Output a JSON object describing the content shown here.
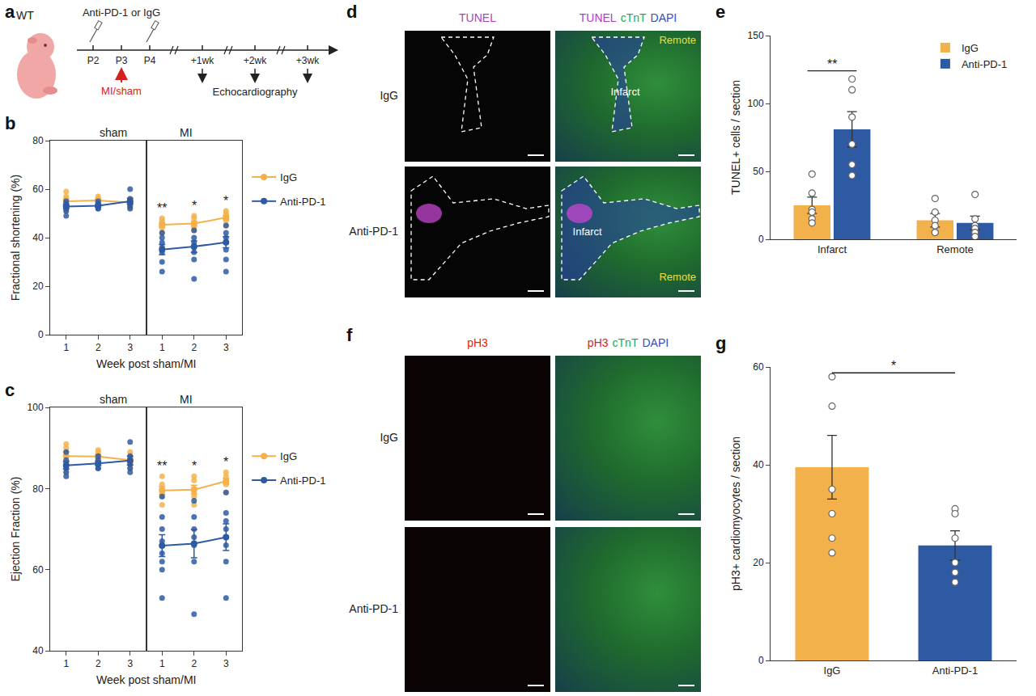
{
  "chart_data": [
    {
      "type": "line",
      "panel": "b",
      "y_label": "Fractional shortening (%)",
      "x_label": "Week post sham/MI",
      "xlim": [
        0.5,
        3.5
      ],
      "xticks": [
        1,
        2,
        3
      ],
      "ylim": [
        0,
        80
      ],
      "yticks": [
        0,
        20,
        40,
        60,
        80
      ],
      "legend": "right",
      "facets": [
        {
          "title": "sham",
          "x": [
            1,
            2,
            3
          ],
          "series": [
            {
              "name": "IgG",
              "color": "#f3b14b",
              "values": [
                55,
                55.3,
                54.5
              ],
              "errors": [
                1.0,
                0.6,
                0.6
              ],
              "points": [
                [
                  59,
                  57,
                  56,
                  55,
                  53,
                  51
                ],
                [
                  57,
                  56,
                  56,
                  55,
                  54,
                  53
                ],
                [
                  56,
                  55,
                  55,
                  54,
                  53,
                  52
                ]
              ]
            },
            {
              "name": "Anti-PD-1",
              "color": "#2e5aa3",
              "values": [
                52.8,
                53.2,
                55
              ],
              "errors": [
                0.8,
                0.5,
                1.2
              ],
              "points": [
                [
                  55,
                  54,
                  53,
                  52,
                  51,
                  49
                ],
                [
                  55,
                  54,
                  53,
                  53,
                  52,
                  52
                ],
                [
                  60,
                  56,
                  55,
                  54,
                  53,
                  52
                ]
              ]
            }
          ],
          "annotations": []
        },
        {
          "title": "MI",
          "x": [
            1,
            2,
            3
          ],
          "series": [
            {
              "name": "IgG",
              "color": "#f3b14b",
              "values": [
                45.3,
                45.8,
                48.3
              ],
              "errors": [
                0.9,
                1.0,
                0.9
              ],
              "points": [
                [
                  48,
                  47,
                  46,
                  45,
                  44,
                  42
                ],
                [
                  49,
                  48,
                  46,
                  45,
                  44,
                  43
                ],
                [
                  51,
                  50,
                  49,
                  48,
                  47,
                  45
                ]
              ]
            },
            {
              "name": "Anti-PD-1",
              "color": "#2e5aa3",
              "values": [
                35.1,
                36.3,
                38.1
              ],
              "errors": [
                2.1,
                2.4,
                2.3
              ],
              "points": [
                [
                  42,
                  40,
                  38,
                  36,
                  34,
                  30,
                  26
                ],
                [
                  43,
                  40,
                  38,
                  36,
                  34,
                  31,
                  23
                ],
                [
                  45,
                  42,
                  40,
                  38,
                  35,
                  31,
                  26
                ]
              ]
            }
          ],
          "annotations": [
            {
              "x": 1,
              "text": "**"
            },
            {
              "x": 2,
              "text": "*"
            },
            {
              "x": 3,
              "text": "*"
            }
          ]
        }
      ]
    },
    {
      "type": "line",
      "panel": "c",
      "y_label": "Ejection Fraction (%)",
      "x_label": "Week post sham/MI",
      "xlim": [
        0.5,
        3.5
      ],
      "xticks": [
        1,
        2,
        3
      ],
      "ylim": [
        40,
        100
      ],
      "yticks": [
        40,
        60,
        80,
        100
      ],
      "legend": "right",
      "facets": [
        {
          "title": "sham",
          "x": [
            1,
            2,
            3
          ],
          "series": [
            {
              "name": "IgG",
              "color": "#f3b14b",
              "values": [
                88,
                87.9,
                87
              ],
              "errors": [
                1.1,
                0.5,
                0.6
              ],
              "points": [
                [
                  91,
                  90,
                  89,
                  88,
                  86,
                  84
                ],
                [
                  89.5,
                  89,
                  88,
                  88,
                  87,
                  86
                ],
                [
                  89,
                  88,
                  87,
                  87,
                  86,
                  85
                ]
              ]
            },
            {
              "name": "Anti-PD-1",
              "color": "#2e5aa3",
              "values": [
                85.7,
                86.2,
                86.9
              ],
              "errors": [
                0.9,
                0.5,
                1.1
              ],
              "points": [
                [
                  89,
                  87,
                  86,
                  85,
                  84,
                  83
                ],
                [
                  88,
                  87,
                  86,
                  86,
                  85,
                  85
                ],
                [
                  91.5,
                  88,
                  87,
                  86,
                  85,
                  84
                ]
              ]
            }
          ],
          "annotations": []
        },
        {
          "title": "MI",
          "x": [
            1,
            2,
            3
          ],
          "series": [
            {
              "name": "IgG",
              "color": "#f3b14b",
              "values": [
                79.5,
                79.7,
                81.8
              ],
              "errors": [
                1.0,
                1.1,
                0.7
              ],
              "points": [
                [
                  83,
                  81,
                  80,
                  79,
                  78,
                  76
                ],
                [
                  83,
                  82,
                  80,
                  79,
                  78,
                  76
                ],
                [
                  84,
                  83,
                  82,
                  82,
                  81,
                  79
                ]
              ]
            },
            {
              "name": "Anti-PD-1",
              "color": "#2e5aa3",
              "values": [
                65.9,
                66.4,
                68
              ],
              "errors": [
                2.7,
                3.5,
                3.3
              ],
              "points": [
                [
                  78,
                  73,
                  70,
                  67,
                  64,
                  62,
                  60,
                  53
                ],
                [
                  77,
                  73,
                  70,
                  68,
                  66,
                  62,
                  49
                ],
                [
                  79,
                  74,
                  72,
                  70,
                  66,
                  62,
                  53
                ]
              ]
            }
          ],
          "annotations": [
            {
              "x": 1,
              "text": "**"
            },
            {
              "x": 2,
              "text": "*"
            },
            {
              "x": 3,
              "text": "*"
            }
          ]
        }
      ]
    },
    {
      "type": "bar",
      "panel": "e",
      "y_label": "TUNEL+ cells / section",
      "categories": [
        "Infarct",
        "Remote"
      ],
      "ylim": [
        0,
        150
      ],
      "yticks": [
        0,
        50,
        100,
        150
      ],
      "legend": "top right",
      "series": [
        {
          "name": "IgG",
          "color": "#f3b14b",
          "values": [
            25,
            14
          ],
          "errors": [
            6,
            5
          ],
          "points": [
            [
              48,
              34,
              22,
              20,
              15,
              12
            ],
            [
              30,
              20,
              14,
              10,
              5,
              5
            ]
          ]
        },
        {
          "name": "Anti-PD-1",
          "color": "#2e5aa3",
          "values": [
            81,
            12
          ],
          "errors": [
            13,
            5
          ],
          "points": [
            [
              118,
              110,
              90,
              70,
              55,
              47
            ],
            [
              33,
              15,
              10,
              8,
              5,
              2
            ]
          ]
        }
      ],
      "annotations": [
        {
          "category": "Infarct",
          "text": "**"
        }
      ]
    },
    {
      "type": "bar",
      "panel": "g",
      "y_label": "pH3+ cardiomyocytes / section",
      "categories": [
        "IgG",
        "Anti-PD-1"
      ],
      "ylim": [
        0,
        60
      ],
      "yticks": [
        0,
        20,
        40,
        60
      ],
      "series": [
        {
          "colors": [
            "#f3b14b",
            "#2e5aa3"
          ],
          "values": [
            39.5,
            23.5
          ],
          "errors": [
            6.5,
            3
          ],
          "points": [
            [
              58,
              52,
              35,
              30,
              25,
              22
            ],
            [
              31,
              30,
              25,
              20,
              16,
              18
            ]
          ]
        }
      ],
      "annotations": [
        {
          "categories": [
            "IgG",
            "Anti-PD-1"
          ],
          "text": "*"
        }
      ]
    }
  ],
  "panels": [
    {
      "label": "a",
      "schematic": {
        "strain": "WT",
        "treatment": "Anti-PD-1 or IgG",
        "timepoints": [
          "P2",
          "P3",
          "P4",
          "+1wk",
          "+2wk",
          "+3wk"
        ],
        "surgery": "MI/sham",
        "surgery_color": "#d62020",
        "readout": "Echocardiography"
      }
    },
    {
      "label": "d",
      "columns": [
        [
          {
            "text": "TUNEL",
            "color": "#b040c0"
          }
        ],
        [
          {
            "text": "TUNEL",
            "color": "#b040c0"
          },
          {
            "text": "cTnT",
            "color": "#2fa840"
          },
          {
            "text": "DAPI",
            "color": "#2f4fc0"
          }
        ]
      ],
      "rows": [
        {
          "name": "IgG",
          "regions": [
            {
              "text": "Remote",
              "color": "#e6e04a"
            },
            {
              "text": "Infarct",
              "color": "#ffffff"
            }
          ]
        },
        {
          "name": "Anti-PD-1",
          "regions": [
            {
              "text": "Infarct",
              "color": "#ffffff"
            },
            {
              "text": "Remote",
              "color": "#e6e04a"
            }
          ]
        }
      ]
    },
    {
      "label": "f",
      "columns": [
        [
          {
            "text": "pH3",
            "color": "#e02020"
          }
        ],
        [
          {
            "text": "pH3",
            "color": "#e02020"
          },
          {
            "text": "cTnT",
            "color": "#2fa840"
          },
          {
            "text": "DAPI",
            "color": "#2f4fc0"
          }
        ]
      ],
      "rows": [
        {
          "name": "IgG",
          "regions": []
        },
        {
          "name": "Anti-PD-1",
          "regions": []
        }
      ]
    }
  ]
}
